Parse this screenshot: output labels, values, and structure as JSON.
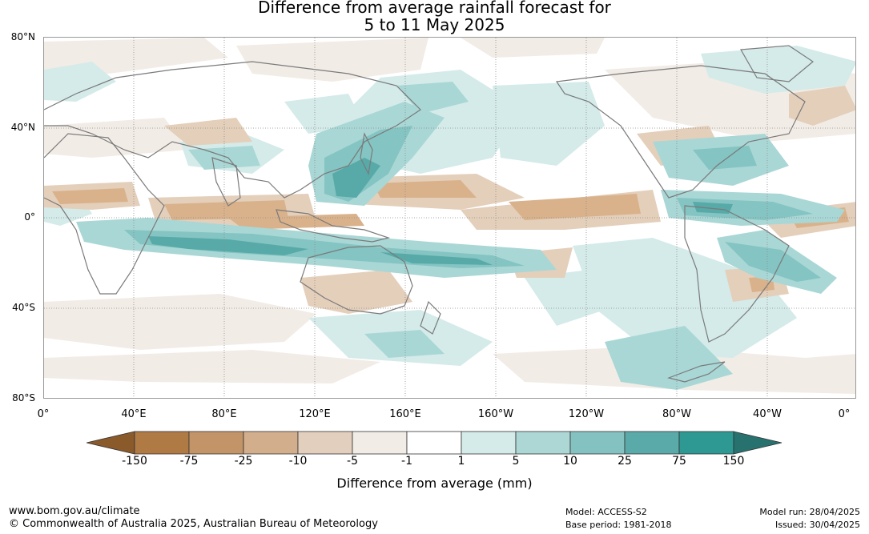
{
  "title": {
    "line1": "Difference from average rainfall forecast for",
    "line2": "5 to 11 May 2025"
  },
  "map": {
    "lat_labels": [
      "80°N",
      "40°N",
      "0°",
      "40°S",
      "80°S"
    ],
    "lon_labels": [
      "0°",
      "40°E",
      "80°E",
      "120°E",
      "160°E",
      "160°W",
      "120°W",
      "80°W",
      "40°W",
      "0°"
    ],
    "palette": {
      "brown_3": "#d9b28c",
      "brown_2": "#e4cfbb",
      "brown_1": "#f2ece6",
      "teal_1": "#d4ebe9",
      "teal_2": "#a9d7d5",
      "teal_3": "#84c4c2",
      "teal_4": "#57aaa8",
      "coast": "#7a7a7a",
      "grid": "#8c8c8c"
    }
  },
  "colorbar": {
    "ticks": [
      "-150",
      "-75",
      "-25",
      "-10",
      "-5",
      "-1",
      "1",
      "5",
      "10",
      "25",
      "75",
      "150"
    ],
    "colors": [
      "#8b5a2b",
      "#b07a45",
      "#c29468",
      "#d3ae8d",
      "#e3cfbd",
      "#f2ece6",
      "#ffffff",
      "#d4ebe9",
      "#acd7d5",
      "#84c2c1",
      "#5aaaa9",
      "#2e9893",
      "#27726f"
    ],
    "label": "Difference from average (mm)"
  },
  "footer": {
    "website": "www.bom.gov.au/climate",
    "copyright": "© Commonwealth of Australia 2025, Australian Bureau of Meteorology",
    "model": "Model: ACCESS-S2",
    "base_period": "Base period: 1981-2018",
    "model_run": "Model run: 28/04/2025",
    "issued": "Issued: 30/04/2025"
  }
}
